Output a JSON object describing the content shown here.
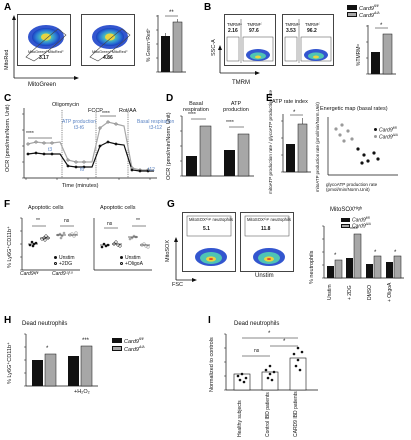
{
  "colors": {
    "wt_bar": "#111111",
    "ko_bar": "#a7a7a7",
    "basal_text": "#5b84c4",
    "ko_dot": "#9a9a9a",
    "wt_dot": "#111111"
  },
  "legend": {
    "wt": "Card9",
    "wt_sup": "fl/fl",
    "ko": "Card9",
    "ko_sup": "Δ/Δ"
  },
  "panels": [
    "A",
    "B",
    "C",
    "D",
    "E",
    "F",
    "G",
    "H",
    "I"
  ],
  "A": {
    "xlabel": "MitoGreen",
    "ylabel": "MitoRed",
    "gate1_label": "MitoGreen⁺MitoRed⁺",
    "gate1_value": "3.17",
    "gate2_label": "MitoGreen⁺MitoRed⁺",
    "gate2_value": "4.86",
    "bar_ylabel": "% Green⁺Red⁺",
    "sig": "**"
  },
  "B": {
    "ylabel": "SSC-A",
    "xlabel": "TMRM",
    "g1_lo": "TMRMˡᵒ",
    "g1_hi": "TMRMʰⁱ",
    "g1_lo_val": "2.16",
    "g1_hi_val": "97.6",
    "g2_lo": "TMRMˡᵒ",
    "g2_hi": "TMRMʰⁱ",
    "g2_lo_val": "3.53",
    "g2_hi_val": "96.2",
    "bar_ylabel": "%TMRMˡᵒ",
    "sig": "*"
  },
  "C": {
    "ylabel": "OCR (pmol/min/Norm. Unit)",
    "xlabel": "Time (minutes)",
    "oligomycin": "Oligomycin",
    "fccp": "FCCP",
    "rotaa": "Rot/AA",
    "atp_prod": "ATP production",
    "atp_range": "t3-t6",
    "basal_resp": "Basal respiration",
    "basal_range": "t3-t12",
    "sig1": "****",
    "sig2": "****",
    "tp_t3": "t3",
    "tp_t6": "t6",
    "tp_t12": "t12"
  },
  "D": {
    "ylabel": "OCR (pmol/min/Norm. Unit)",
    "title1": "Basal respiration",
    "title2": "ATP production",
    "sig1": "****",
    "sig2": "****"
  },
  "E": {
    "title1": "ATP rate index",
    "title2": "Energetic map (basal rates)",
    "ylabel1": "mitoATP production rate / glycoATP production rate",
    "ylabel2": "mitoATP production rate (pmol/min/Norm.Unit)",
    "xlabel2": "glycoATP production rate (pmol/min/Norm.Unit)",
    "sig": "*"
  },
  "F": {
    "title1": "Apoptotic cells",
    "title2": "Apoptotic cells",
    "ylabel": "% Ly6G⁺CD11b⁺",
    "leg1a": "Unstim",
    "leg1b": "+2DG",
    "leg2a": "Unstim",
    "leg2b": "+OligoA",
    "sig1": "**",
    "sig2": "ns",
    "sig3": "ns",
    "sig4": "**",
    "xg1": "Card9ᶠˡ/ᶠˡ",
    "xg2": "Card9ᐞ/ᐞ"
  },
  "G": {
    "gate1_label": "MitoSOXʰⁱᵍʰ neutrophils",
    "gate1_value": "5.1",
    "gate2_label": "MitoSOXʰⁱᵍʰ neutrophils",
    "gate2_value": "11.8",
    "ylabel": "MitoSOX",
    "xlabel": "FSC",
    "unstim": "Unstim",
    "bar_title": "MitoSOXᴴⁱᵍʰ",
    "bar_ylabel": "% neutrophils",
    "cats": [
      "Unstim",
      "+ 2DG",
      "DMSO",
      "+ OligoA"
    ],
    "sig": [
      "*",
      "****",
      "*",
      "*"
    ]
  },
  "H": {
    "title": "Dead neutrophils",
    "ylabel": "% Ly6G⁺CD11b⁺",
    "cat2": "+H₂O₂",
    "sig1": "*",
    "sig2": "***"
  },
  "I": {
    "title": "Dead neutrophils",
    "ylabel": "Normalized to controls",
    "cats": [
      "Healthy subjects",
      "Control IBD patients",
      "CARD9 IBD patients"
    ],
    "sig1": "ns",
    "sig2": "*",
    "sig3": "*"
  }
}
